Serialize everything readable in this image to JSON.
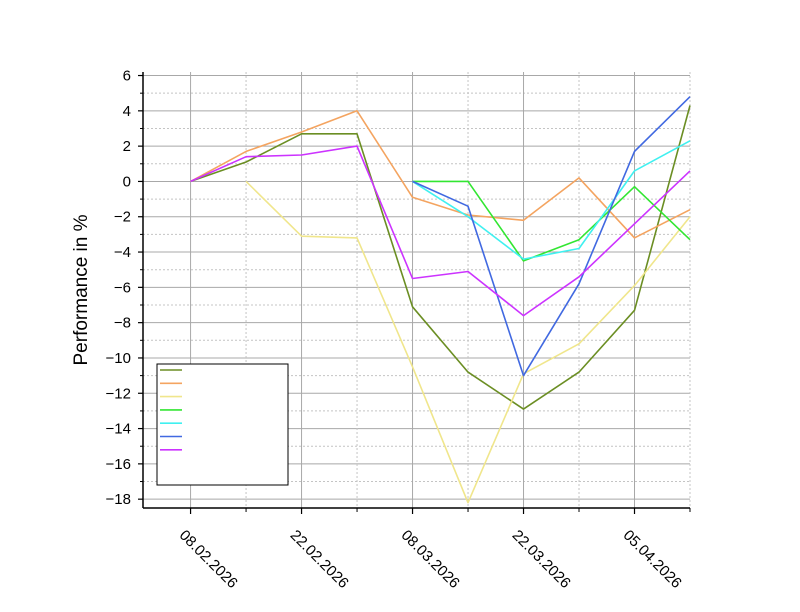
{
  "chart_data": {
    "type": "line",
    "ylabel": "Performance in %",
    "xlabel": "",
    "x_dates": [
      "02.02.2026",
      "08.02.2026",
      "15.02.2026",
      "22.02.2026",
      "01.03.2026",
      "08.03.2026",
      "15.03.2026",
      "22.03.2026",
      "29.03.2026",
      "05.04.2026",
      "12.04.2026"
    ],
    "x_tick_labels": [
      "08.02.2026",
      "22.02.2026",
      "08.03.2026",
      "22.03.2026",
      "05.04.2026"
    ],
    "x_tick_dates": [
      "08.02.2026",
      "22.02.2026",
      "08.03.2026",
      "22.03.2026",
      "05.04.2026"
    ],
    "x_minor_tick_dates": [
      "15.02.2026",
      "01.03.2026",
      "15.03.2026",
      "29.03.2026",
      "12.04.2026"
    ],
    "xlim": [
      "02.02.2026",
      "12.04.2026"
    ],
    "ylim": [
      -18.5,
      6.2
    ],
    "y_ticks": [
      6,
      4,
      2,
      0,
      -2,
      -4,
      -6,
      -8,
      -10,
      -12,
      -14,
      -16,
      -18
    ],
    "y_tick_labels": [
      "6",
      "4",
      "2",
      "0",
      "−2",
      "−4",
      "−6",
      "−8",
      "−10",
      "−12",
      "−14",
      "−16",
      "−18"
    ],
    "grid": true,
    "legend": {
      "position": "bottom-left",
      "show_names": false
    },
    "series": [
      {
        "color": "#6b8e23",
        "points": [
          [
            "08.02.2026",
            0
          ],
          [
            "15.02.2026",
            1.1
          ],
          [
            "22.02.2026",
            2.7
          ],
          [
            "01.03.2026",
            2.7
          ],
          [
            "08.03.2026",
            -7.1
          ],
          [
            "15.03.2026",
            -10.8
          ],
          [
            "22.03.2026",
            -12.9
          ],
          [
            "29.03.2026",
            -10.8
          ],
          [
            "05.04.2026",
            -7.3
          ],
          [
            "12.04.2026",
            4.3
          ]
        ]
      },
      {
        "color": "#f4a460",
        "points": [
          [
            "08.02.2026",
            0
          ],
          [
            "15.02.2026",
            1.7
          ],
          [
            "22.02.2026",
            2.8
          ],
          [
            "01.03.2026",
            4.0
          ],
          [
            "08.03.2026",
            -0.9
          ],
          [
            "15.03.2026",
            -1.9
          ],
          [
            "22.03.2026",
            -2.2
          ],
          [
            "29.03.2026",
            0.2
          ],
          [
            "05.04.2026",
            -3.2
          ],
          [
            "12.04.2026",
            -1.6
          ]
        ]
      },
      {
        "color": "#f0e68c",
        "points": [
          [
            "15.02.2026",
            0
          ],
          [
            "22.02.2026",
            -3.1
          ],
          [
            "01.03.2026",
            -3.2
          ],
          [
            "08.03.2026",
            -10.5
          ],
          [
            "15.03.2026",
            -18.2
          ],
          [
            "22.03.2026",
            -10.9
          ],
          [
            "29.03.2026",
            -9.2
          ],
          [
            "05.04.2026",
            -5.9
          ],
          [
            "12.04.2026",
            -2.0
          ]
        ]
      },
      {
        "color": "#32e632",
        "points": [
          [
            "08.03.2026",
            0
          ],
          [
            "15.03.2026",
            0
          ],
          [
            "22.03.2026",
            -4.5
          ],
          [
            "29.03.2026",
            -3.3
          ],
          [
            "05.04.2026",
            -0.3
          ],
          [
            "12.04.2026",
            -3.3
          ]
        ]
      },
      {
        "color": "#40f0f0",
        "points": [
          [
            "08.03.2026",
            0
          ],
          [
            "15.03.2026",
            -2.0
          ],
          [
            "22.03.2026",
            -4.4
          ],
          [
            "29.03.2026",
            -3.8
          ],
          [
            "05.04.2026",
            0.6
          ],
          [
            "12.04.2026",
            2.3
          ]
        ]
      },
      {
        "color": "#4169e1",
        "points": [
          [
            "08.03.2026",
            0
          ],
          [
            "15.03.2026",
            -1.4
          ],
          [
            "22.03.2026",
            -11.0
          ],
          [
            "29.03.2026",
            -5.8
          ],
          [
            "05.04.2026",
            1.7
          ],
          [
            "12.04.2026",
            4.8
          ]
        ]
      },
      {
        "color": "#cc33ff",
        "points": [
          [
            "08.02.2026",
            0
          ],
          [
            "15.02.2026",
            1.4
          ],
          [
            "22.02.2026",
            1.5
          ],
          [
            "01.03.2026",
            2.0
          ],
          [
            "08.03.2026",
            -5.5
          ],
          [
            "15.03.2026",
            -5.1
          ],
          [
            "22.03.2026",
            -7.6
          ],
          [
            "29.03.2026",
            -5.4
          ],
          [
            "05.04.2026",
            -2.4
          ],
          [
            "12.04.2026",
            0.6
          ]
        ]
      }
    ]
  }
}
